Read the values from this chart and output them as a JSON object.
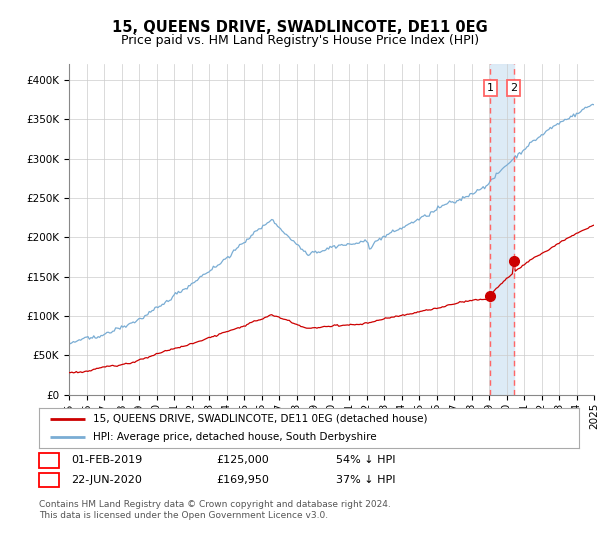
{
  "title": "15, QUEENS DRIVE, SWADLINCOTE, DE11 0EG",
  "subtitle": "Price paid vs. HM Land Registry's House Price Index (HPI)",
  "ylabel_ticks": [
    "£0",
    "£50K",
    "£100K",
    "£150K",
    "£200K",
    "£250K",
    "£300K",
    "£350K",
    "£400K"
  ],
  "ytick_values": [
    0,
    50000,
    100000,
    150000,
    200000,
    250000,
    300000,
    350000,
    400000
  ],
  "ylim": [
    0,
    420000
  ],
  "hpi_color": "#7aadd4",
  "price_color": "#cc0000",
  "marker_color": "#cc0000",
  "vline_color": "#ff6666",
  "vband_color": "#d8e8f5",
  "marker1_price": 125000,
  "marker2_price": 169950,
  "legend_label1": "15, QUEENS DRIVE, SWADLINCOTE, DE11 0EG (detached house)",
  "legend_label2": "HPI: Average price, detached house, South Derbyshire",
  "table_row1": [
    "1",
    "01-FEB-2019",
    "£125,000",
    "54% ↓ HPI"
  ],
  "table_row2": [
    "2",
    "22-JUN-2020",
    "£169,950",
    "37% ↓ HPI"
  ],
  "footer": "Contains HM Land Registry data © Crown copyright and database right 2024.\nThis data is licensed under the Open Government Licence v3.0.",
  "background_color": "#ffffff",
  "grid_color": "#cccccc",
  "title_fontsize": 10.5,
  "subtitle_fontsize": 9,
  "tick_fontsize": 7.5
}
